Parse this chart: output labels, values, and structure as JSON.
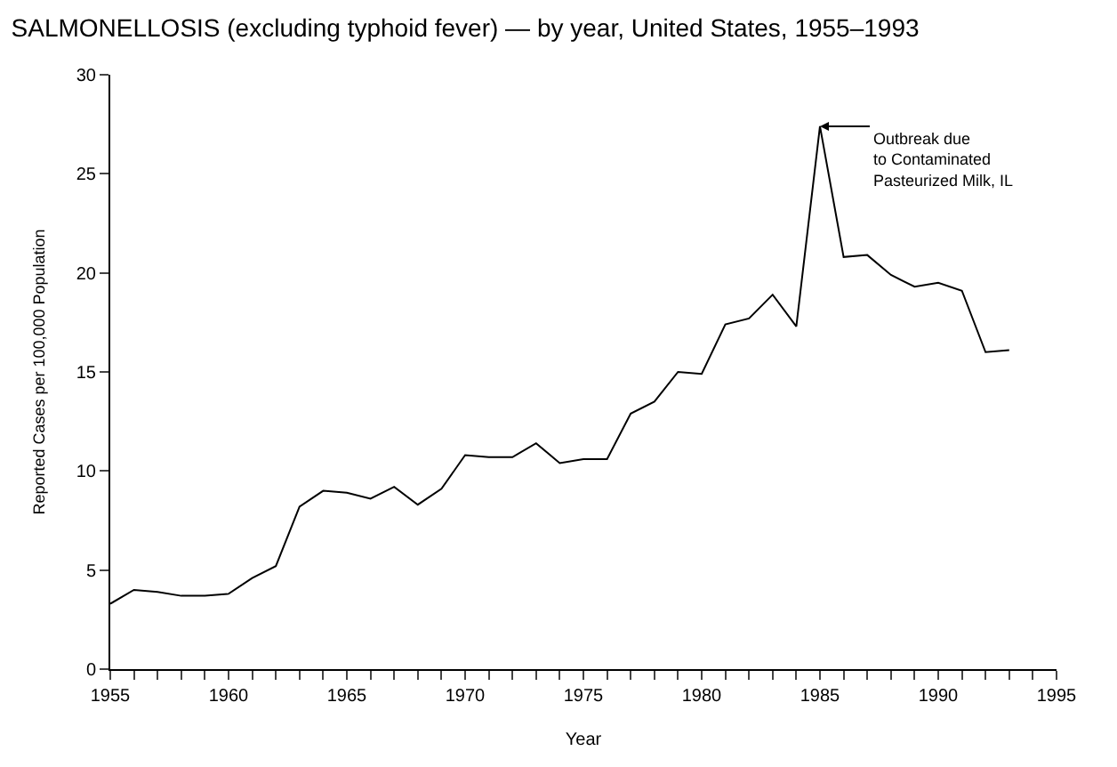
{
  "chart_data": {
    "type": "line",
    "title": "SALMONELLOSIS (excluding typhoid fever) — by year, United States, 1955–1993",
    "xlabel": "Year",
    "ylabel": "Reported Cases per 100,000 Population",
    "x": [
      1955,
      1956,
      1957,
      1958,
      1959,
      1960,
      1961,
      1962,
      1963,
      1964,
      1965,
      1966,
      1967,
      1968,
      1969,
      1970,
      1971,
      1972,
      1973,
      1974,
      1975,
      1976,
      1977,
      1978,
      1979,
      1980,
      1981,
      1982,
      1983,
      1984,
      1985,
      1986,
      1987,
      1988,
      1989,
      1990,
      1991,
      1992,
      1993
    ],
    "series": [
      {
        "color": "#000000",
        "values": [
          3.3,
          4.0,
          3.9,
          3.7,
          3.7,
          3.8,
          4.6,
          5.2,
          8.2,
          9.0,
          8.9,
          8.6,
          9.2,
          8.3,
          9.1,
          10.8,
          10.7,
          10.7,
          11.4,
          10.4,
          10.6,
          10.6,
          12.9,
          13.5,
          15.0,
          14.9,
          17.4,
          17.7,
          18.9,
          17.3,
          27.4,
          20.8,
          20.9,
          19.9,
          19.3,
          19.5,
          19.1,
          16.0,
          16.1
        ]
      }
    ],
    "xlim": [
      1955,
      1995
    ],
    "xticks": [
      1955,
      {
        "value": 1956,
        "label": null
      },
      {
        "value": 1957,
        "label": null
      },
      {
        "value": 1958,
        "label": null
      },
      {
        "value": 1959,
        "label": null
      },
      1960,
      {
        "value": 1961,
        "label": null
      },
      {
        "value": 1962,
        "label": null
      },
      {
        "value": 1963,
        "label": null
      },
      {
        "value": 1964,
        "label": null
      },
      1965,
      {
        "value": 1966,
        "label": null
      },
      {
        "value": 1967,
        "label": null
      },
      {
        "value": 1968,
        "label": null
      },
      {
        "value": 1969,
        "label": null
      },
      1970,
      {
        "value": 1971,
        "label": null
      },
      {
        "value": 1972,
        "label": null
      },
      {
        "value": 1973,
        "label": null
      },
      {
        "value": 1974,
        "label": null
      },
      1975,
      {
        "value": 1976,
        "label": null
      },
      {
        "value": 1977,
        "label": null
      },
      {
        "value": 1978,
        "label": null
      },
      {
        "value": 1979,
        "label": null
      },
      1980,
      {
        "value": 1981,
        "label": null
      },
      {
        "value": 1982,
        "label": null
      },
      {
        "value": 1983,
        "label": null
      },
      {
        "value": 1984,
        "label": null
      },
      1985,
      {
        "value": 1986,
        "label": null
      },
      {
        "value": 1987,
        "label": null
      },
      {
        "value": 1988,
        "label": null
      },
      {
        "value": 1989,
        "label": null
      },
      1990,
      {
        "value": 1991,
        "label": null
      },
      {
        "value": 1992,
        "label": null
      },
      {
        "value": 1993,
        "label": null
      },
      {
        "value": 1994,
        "label": null
      },
      1995
    ],
    "ylim": [
      0,
      30
    ],
    "yticks": [
      0,
      5,
      10,
      15,
      20,
      25,
      30
    ],
    "legend": false,
    "marker": "none",
    "line_style": "solid",
    "annotations": [
      {
        "text": "Outbreak due\nto Contaminated\nPasteurized Milk, IL",
        "x": 1985,
        "y": 27.4
      }
    ]
  }
}
